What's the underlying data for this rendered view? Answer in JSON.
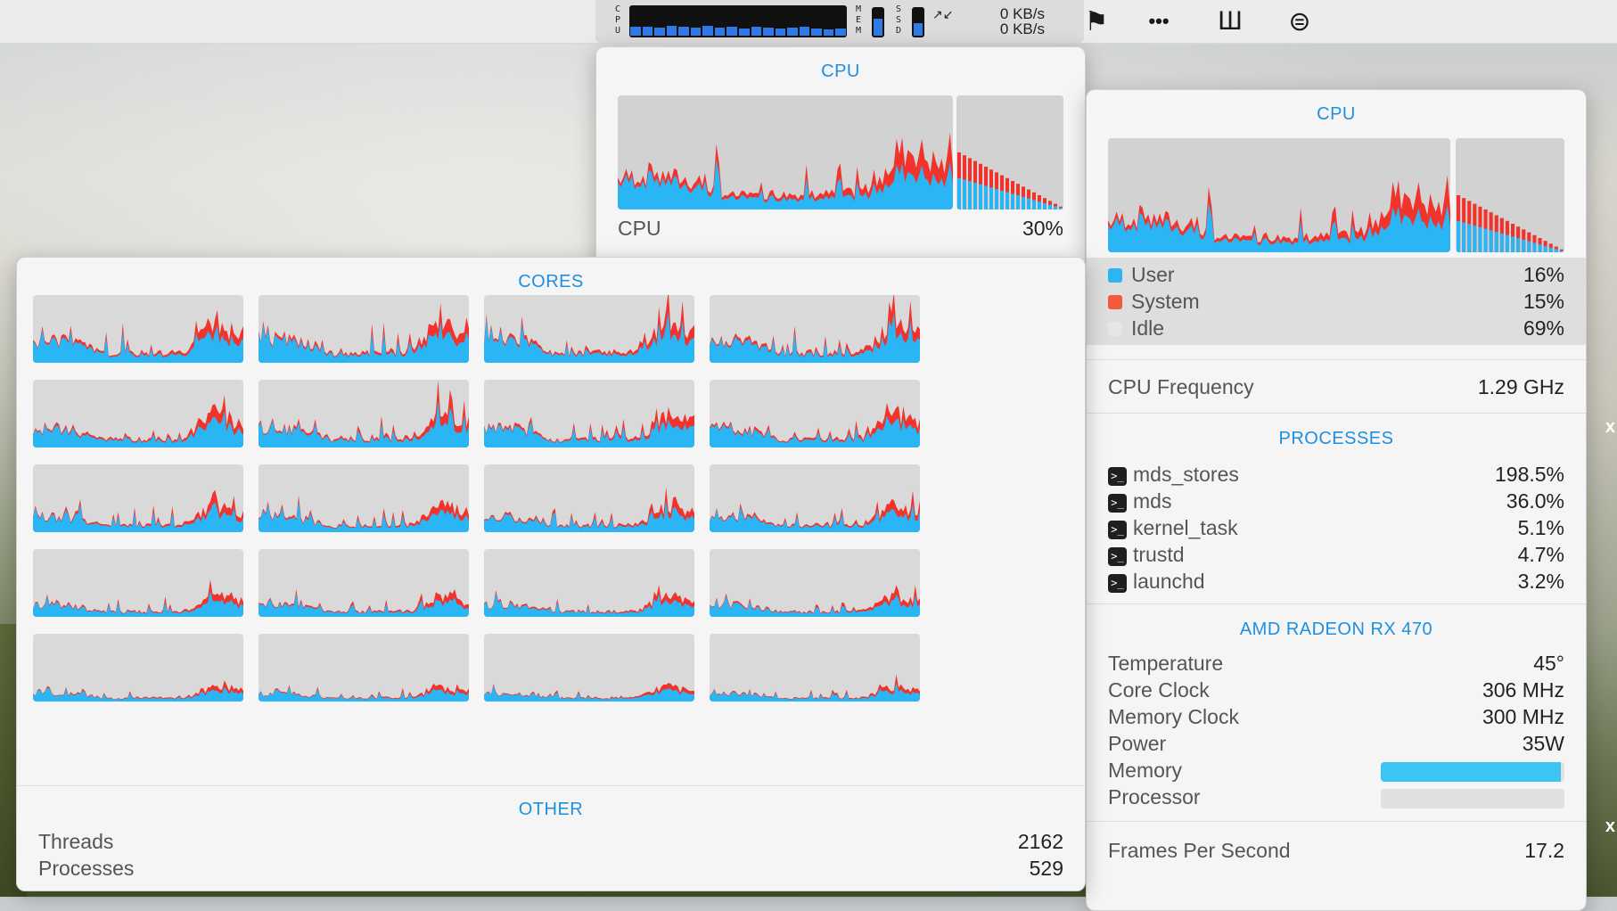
{
  "menubar": {
    "cpu_label": [
      "C",
      "P",
      "U"
    ],
    "mem_label": [
      "M",
      "E",
      "M"
    ],
    "ssd_label": [
      "S",
      "S",
      "D"
    ],
    "net_up": "0 KB/s",
    "net_down": "0 KB/s",
    "net_arrows": "↗↙",
    "cpu_history": [
      0.3,
      0.32,
      0.28,
      0.35,
      0.3,
      0.27,
      0.33,
      0.29,
      0.31,
      0.26,
      0.3,
      0.28,
      0.25,
      0.27,
      0.3,
      0.24,
      0.22,
      0.26
    ],
    "mem_level": 0.55,
    "ssd_level": 0.4,
    "icons": [
      "flag-icon",
      "more-icon",
      "hub-icon",
      "control-center-icon"
    ],
    "icon_glyphs": [
      "⚑",
      "•••",
      "Ш",
      "⊜"
    ]
  },
  "popover_cpu": {
    "title": "CPU",
    "label": "CPU",
    "value": "30%"
  },
  "cpu_panel": {
    "title": "CPU",
    "legend": [
      {
        "name": "User",
        "value": "16%",
        "color": "#2ab6f5"
      },
      {
        "name": "System",
        "value": "15%",
        "color": "#f25a3c"
      },
      {
        "name": "Idle",
        "value": "69%",
        "color": "#e6e6e6"
      }
    ],
    "frequency_label": "CPU Frequency",
    "frequency_value": "1.29 GHz",
    "processes_title": "PROCESSES",
    "processes": [
      {
        "name": "mds_stores",
        "value": "198.5%"
      },
      {
        "name": "mds",
        "value": "36.0%"
      },
      {
        "name": "kernel_task",
        "value": "5.1%"
      },
      {
        "name": "trustd",
        "value": "4.7%"
      },
      {
        "name": "launchd",
        "value": "3.2%"
      }
    ],
    "gpu_title": "AMD RADEON RX 470",
    "gpu_rows": [
      {
        "label": "Temperature",
        "value": "45°"
      },
      {
        "label": "Core Clock",
        "value": "306 MHz"
      },
      {
        "label": "Memory Clock",
        "value": "300 MHz"
      },
      {
        "label": "Power",
        "value": "35W"
      }
    ],
    "gpu_bars": [
      {
        "label": "Memory",
        "level": 0.98
      },
      {
        "label": "Processor",
        "level": 0.0
      }
    ],
    "fps_label": "Frames Per Second",
    "fps_value": "17.2"
  },
  "cores_panel": {
    "title": "CORES",
    "core_count": 20,
    "other_title": "OTHER",
    "other_rows": [
      {
        "label": "Threads",
        "value": "2162"
      },
      {
        "label": "Processes",
        "value": "529"
      }
    ]
  },
  "colors": {
    "accent": "#1e8fe0",
    "user": "#2ab6f5",
    "system": "#f2332c",
    "bar_fill": "#3cc4f5"
  },
  "desktop_edge": [
    "x",
    "x"
  ]
}
